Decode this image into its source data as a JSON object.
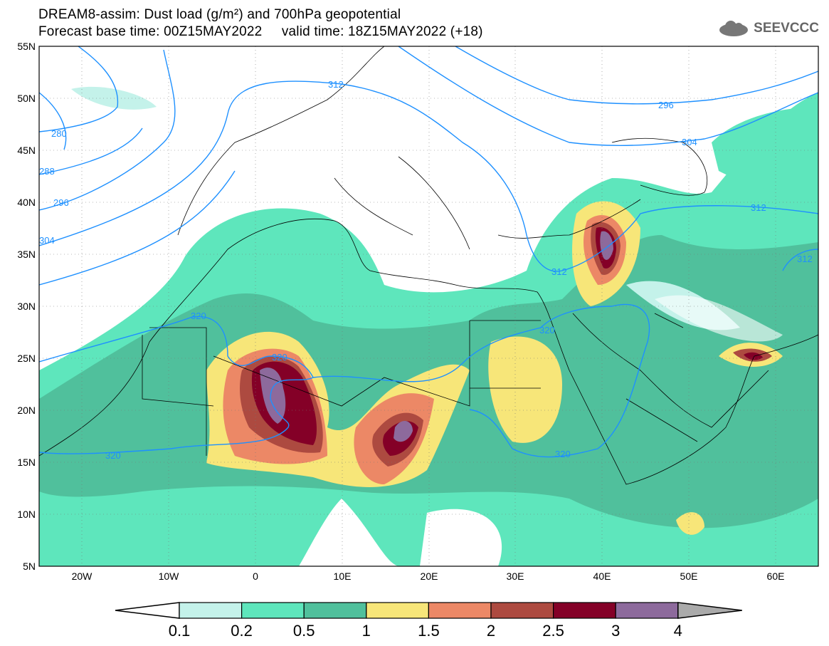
{
  "header": {
    "title_line1": "DREAM8-assim: Dust load (g/m²) and 700hPa geopotential",
    "title_line2": "Forecast base time: 00Z15MAY2022     valid time: 18Z15MAY2022 (+18)",
    "logo_text": "SEEVCCC"
  },
  "axes": {
    "lat_labels": [
      "55N",
      "50N",
      "45N",
      "40N",
      "35N",
      "30N",
      "25N",
      "20N",
      "15N",
      "10N",
      "5N"
    ],
    "lon_labels": [
      "20W",
      "10W",
      "0",
      "10E",
      "20E",
      "30E",
      "40E",
      "50E",
      "60E"
    ]
  },
  "contour_labels": [
    "312",
    "280",
    "288",
    "296",
    "304",
    "296",
    "304",
    "312",
    "312",
    "312",
    "320",
    "320",
    "320",
    "320",
    "320"
  ],
  "colorbar": {
    "ticks": [
      "0.1",
      "0.2",
      "0.5",
      "1",
      "1.5",
      "2",
      "2.5",
      "3",
      "4"
    ],
    "colors": [
      "#ffffff",
      "#c4f2ea",
      "#5ee6bc",
      "#50c09c",
      "#f7e679",
      "#ec8866",
      "#ad4a40",
      "#840027",
      "#8d6a9c",
      "#aaaaaa"
    ]
  }
}
